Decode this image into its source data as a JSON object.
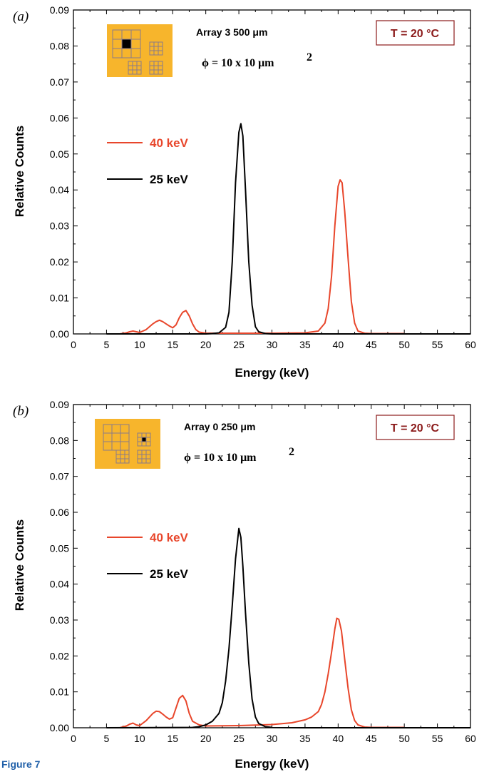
{
  "colors": {
    "red": "#e8462b",
    "black": "#000000",
    "inset_bg": "#f7b52c",
    "inset_grid": "#8a7a8a",
    "temp_text": "#8b1a1a",
    "temp_border": "#8b1a1a"
  },
  "footer_label": "Figure 7",
  "chart_data": [
    {
      "type": "line",
      "panel_label": "(a)",
      "xlabel": "Energy (keV)",
      "ylabel": "Relative Counts",
      "xlim": [
        0,
        60
      ],
      "ylim": [
        0,
        0.09
      ],
      "x_ticks": [
        "0",
        "5",
        "10",
        "15",
        "20",
        "25",
        "30",
        "35",
        "40",
        "45",
        "50",
        "55",
        "60"
      ],
      "y_ticks": [
        "0.00",
        "0.01",
        "0.02",
        "0.03",
        "0.04",
        "0.05",
        "0.06",
        "0.07",
        "0.08",
        "0.09"
      ],
      "array_label": "Array 3 500 μm",
      "phi_label": "ϕ = 10 x 10 μm",
      "phi_sup": "2",
      "temp_label": "T = 20 °C",
      "inset_highlight": "big",
      "series": [
        {
          "name": "40 keV",
          "color": "#e8462b",
          "x": [
            7,
            8,
            8.5,
            9,
            9.5,
            10,
            11,
            12,
            12.5,
            13,
            13.5,
            14,
            14.5,
            15,
            15.5,
            16,
            16.5,
            17,
            17.5,
            18,
            18.5,
            19,
            20,
            25,
            30,
            35,
            37,
            38,
            38.5,
            39,
            39.5,
            40,
            40.3,
            40.6,
            41,
            41.5,
            42,
            42.5,
            43,
            44,
            45,
            50
          ],
          "y": [
            0,
            0.0003,
            0.0006,
            0.0008,
            0.0006,
            0.0004,
            0.0012,
            0.0028,
            0.0034,
            0.0038,
            0.0034,
            0.0028,
            0.0022,
            0.0017,
            0.0025,
            0.0045,
            0.006,
            0.0065,
            0.005,
            0.0028,
            0.0012,
            0.0005,
            0.0002,
            0.0002,
            0.0002,
            0.0003,
            0.0008,
            0.003,
            0.007,
            0.016,
            0.03,
            0.041,
            0.0428,
            0.042,
            0.034,
            0.021,
            0.009,
            0.003,
            0.0008,
            0.0002,
            0.0001,
            0.0001
          ]
        },
        {
          "name": "25 keV",
          "color": "#000000",
          "x": [
            5,
            20,
            21,
            22,
            23,
            23.5,
            24,
            24.5,
            25,
            25.3,
            25.6,
            26,
            26.5,
            27,
            27.5,
            28,
            29,
            30,
            35,
            60
          ],
          "y": [
            0,
            0,
            0.0001,
            0.0003,
            0.0018,
            0.006,
            0.02,
            0.042,
            0.056,
            0.0584,
            0.055,
            0.04,
            0.02,
            0.008,
            0.002,
            0.0006,
            0.0001,
            0,
            0,
            0
          ]
        }
      ]
    },
    {
      "type": "line",
      "panel_label": "(b)",
      "xlabel": "Energy (keV)",
      "ylabel": "Relative Counts",
      "xlim": [
        0,
        60
      ],
      "ylim": [
        0,
        0.09
      ],
      "x_ticks": [
        "0",
        "5",
        "10",
        "15",
        "20",
        "25",
        "30",
        "35",
        "40",
        "45",
        "50",
        "55",
        "60"
      ],
      "y_ticks": [
        "0.00",
        "0.01",
        "0.02",
        "0.03",
        "0.04",
        "0.05",
        "0.06",
        "0.07",
        "0.08",
        "0.09"
      ],
      "array_label": "Array 0 250 μm",
      "phi_label": "ϕ = 10 x 10 μm",
      "phi_sup": "2",
      "temp_label": "T = 20 °C",
      "inset_highlight": "small",
      "series": [
        {
          "name": "40 keV",
          "color": "#e8462b",
          "x": [
            7,
            8,
            8.5,
            9,
            9.5,
            10,
            11,
            12,
            12.5,
            13,
            13.5,
            14,
            14.5,
            15,
            15.5,
            16,
            16.5,
            17,
            17.5,
            18,
            19,
            20,
            25,
            30,
            33,
            35,
            36,
            37,
            37.5,
            38,
            38.5,
            39,
            39.5,
            39.8,
            40.1,
            40.5,
            41,
            41.5,
            42,
            42.5,
            43,
            44,
            45,
            50
          ],
          "y": [
            0,
            0.0005,
            0.001,
            0.0013,
            0.0008,
            0.0006,
            0.002,
            0.004,
            0.0046,
            0.0045,
            0.0038,
            0.003,
            0.0024,
            0.0028,
            0.0055,
            0.0082,
            0.009,
            0.0075,
            0.004,
            0.0018,
            0.0008,
            0.0005,
            0.0006,
            0.0009,
            0.0014,
            0.0022,
            0.003,
            0.0045,
            0.0065,
            0.01,
            0.015,
            0.021,
            0.0275,
            0.0305,
            0.0302,
            0.027,
            0.019,
            0.011,
            0.005,
            0.002,
            0.0008,
            0.0002,
            0.0001,
            0.0001
          ]
        },
        {
          "name": "25 keV",
          "color": "#000000",
          "x": [
            5,
            18,
            19,
            20,
            21,
            22,
            22.5,
            23,
            23.5,
            24,
            24.5,
            25,
            25.3,
            25.6,
            26,
            26.5,
            27,
            27.5,
            28,
            29,
            30,
            35,
            60
          ],
          "y": [
            0,
            0.0001,
            0.0003,
            0.0008,
            0.0018,
            0.004,
            0.007,
            0.013,
            0.022,
            0.034,
            0.047,
            0.0555,
            0.053,
            0.045,
            0.032,
            0.018,
            0.008,
            0.003,
            0.0012,
            0.0003,
            0.0001,
            0,
            0
          ]
        }
      ]
    }
  ]
}
